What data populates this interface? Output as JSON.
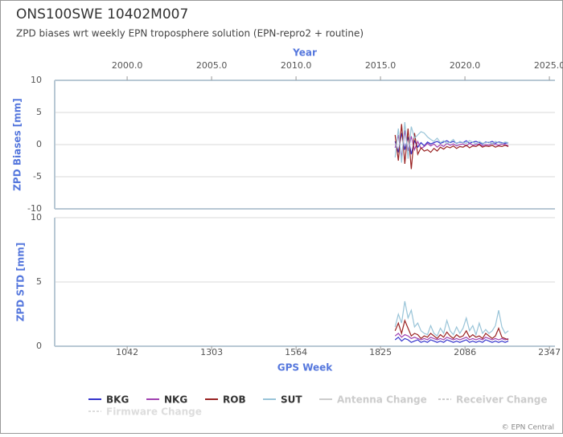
{
  "chart_data": [
    {
      "type": "line",
      "title": "ONS100SWE 10402M007",
      "subtitle": "ZPD biases wrt weekly EPN troposphere solution (EPN-repro2 + routine)",
      "x2label": "Year",
      "x2lim": [
        1995.71,
        2025.33
      ],
      "x2ticks": [
        {
          "value": 2000,
          "label": "2000.0"
        },
        {
          "value": 2005,
          "label": "2005.0"
        },
        {
          "value": 2010,
          "label": "2010.0"
        },
        {
          "value": 2015,
          "label": "2015.0"
        },
        {
          "value": 2020,
          "label": "2020.0"
        },
        {
          "value": 2025,
          "label": "2025.0"
        }
      ],
      "ylabel": "ZPD Biases [mm]",
      "ylim": [
        -10,
        10
      ],
      "yticks": [
        -10,
        -5,
        0,
        5,
        10
      ],
      "grid": true,
      "xlim": [
        818,
        2364
      ],
      "x": [
        1870,
        1880,
        1890,
        1900,
        1910,
        1920,
        1930,
        1940,
        1950,
        1960,
        1970,
        1980,
        1990,
        2000,
        2010,
        2020,
        2030,
        2040,
        2050,
        2060,
        2070,
        2080,
        2090,
        2100,
        2110,
        2120,
        2130,
        2140,
        2150,
        2160,
        2170,
        2180,
        2190,
        2200,
        2210,
        2220
      ],
      "series": [
        {
          "name": "BKG",
          "color": "#3333cc",
          "values": [
            0.5,
            -1.2,
            1.8,
            -0.8,
            1.2,
            -1.5,
            0.6,
            -0.4,
            0.3,
            -0.2,
            0.4,
            0.1,
            0.3,
            0.5,
            0.2,
            0.4,
            0.6,
            0.3,
            0.5,
            0.2,
            0.4,
            0.3,
            0.6,
            0.2,
            0.4,
            0.5,
            0.3,
            0.1,
            0.4,
            0.3,
            0.5,
            0.2,
            0.4,
            0.3,
            0.2,
            0.3
          ]
        },
        {
          "name": "NKG",
          "color": "#a040b0",
          "values": [
            -0.5,
            1.5,
            -2.0,
            2.2,
            -1.0,
            1.3,
            -0.8,
            0.5,
            -0.6,
            -0.3,
            0.2,
            -0.2,
            0.1,
            -0.4,
            0.0,
            -0.3,
            0.2,
            -0.1,
            0.1,
            -0.2,
            0.0,
            0.1,
            -0.2,
            0.2,
            -0.1,
            0.0,
            0.1,
            -0.2,
            0.0,
            -0.1,
            0.2,
            0.0,
            -0.1,
            0.1,
            0.0,
            -0.2
          ]
        },
        {
          "name": "ROB",
          "color": "#992222",
          "values": [
            1.5,
            -2.5,
            3.2,
            -3.0,
            2.5,
            -3.8,
            1.8,
            -1.5,
            -0.5,
            -1.0,
            -0.8,
            -1.2,
            -0.6,
            -1.0,
            -0.4,
            -0.7,
            -0.3,
            -0.5,
            -0.2,
            -0.6,
            -0.3,
            -0.4,
            -0.1,
            -0.5,
            -0.2,
            -0.3,
            0.0,
            -0.4,
            -0.2,
            -0.3,
            -0.1,
            -0.4,
            -0.2,
            -0.3,
            -0.1,
            -0.3
          ]
        },
        {
          "name": "SUT",
          "color": "#99c4d8",
          "values": [
            -2.0,
            2.5,
            -2.8,
            3.5,
            -2.2,
            2.8,
            1.0,
            1.5,
            2.0,
            1.8,
            1.2,
            0.8,
            0.5,
            1.0,
            0.3,
            0.6,
            0.2,
            0.4,
            0.8,
            0.1,
            0.5,
            0.3,
            0.2,
            0.6,
            0.4,
            0.1,
            0.5,
            0.2,
            0.3,
            0.4,
            0.1,
            0.5,
            0.3,
            0.2,
            0.4,
            0.3
          ]
        }
      ]
    },
    {
      "type": "line",
      "ylabel": "ZPD STD [mm]",
      "ylim": [
        0,
        10
      ],
      "yticks": [
        0,
        5,
        10
      ],
      "grid": true,
      "xlabel": "GPS Week",
      "xlim": [
        818,
        2364
      ],
      "xticks": [
        1042,
        1303,
        1564,
        1825,
        2086,
        2347
      ],
      "x": [
        1870,
        1880,
        1890,
        1900,
        1910,
        1920,
        1930,
        1940,
        1950,
        1960,
        1970,
        1980,
        1990,
        2000,
        2010,
        2020,
        2030,
        2040,
        2050,
        2060,
        2070,
        2080,
        2090,
        2100,
        2110,
        2120,
        2130,
        2140,
        2150,
        2160,
        2170,
        2180,
        2190,
        2200,
        2210,
        2220
      ],
      "series": [
        {
          "name": "BKG",
          "color": "#3333cc",
          "values": [
            0.5,
            0.7,
            0.4,
            0.6,
            0.5,
            0.3,
            0.4,
            0.5,
            0.3,
            0.4,
            0.3,
            0.5,
            0.4,
            0.3,
            0.4,
            0.3,
            0.5,
            0.4,
            0.3,
            0.4,
            0.3,
            0.4,
            0.5,
            0.3,
            0.4,
            0.3,
            0.4,
            0.3,
            0.5,
            0.4,
            0.3,
            0.4,
            0.3,
            0.4,
            0.3,
            0.4
          ]
        },
        {
          "name": "NKG",
          "color": "#a040b0",
          "values": [
            0.8,
            1.0,
            0.7,
            0.9,
            0.8,
            0.6,
            0.7,
            0.6,
            0.5,
            0.6,
            0.5,
            0.7,
            0.6,
            0.5,
            0.6,
            0.5,
            0.7,
            0.6,
            0.5,
            0.6,
            0.5,
            0.6,
            0.7,
            0.5,
            0.6,
            0.5,
            0.6,
            0.5,
            0.7,
            0.6,
            0.5,
            0.6,
            0.5,
            0.6,
            0.5,
            0.6
          ]
        },
        {
          "name": "ROB",
          "color": "#992222",
          "values": [
            1.2,
            1.8,
            1.0,
            2.0,
            1.4,
            0.8,
            1.0,
            0.9,
            0.6,
            0.8,
            0.7,
            1.0,
            0.8,
            0.6,
            0.9,
            0.7,
            1.1,
            0.8,
            0.6,
            0.9,
            0.7,
            0.8,
            1.2,
            0.7,
            0.9,
            0.7,
            0.8,
            0.6,
            1.0,
            0.8,
            0.6,
            0.8,
            1.4,
            0.7,
            0.6,
            0.5
          ]
        },
        {
          "name": "SUT",
          "color": "#99c4d8",
          "values": [
            1.5,
            2.5,
            1.8,
            3.5,
            2.2,
            2.8,
            1.5,
            1.8,
            1.2,
            1.0,
            0.9,
            1.6,
            1.0,
            0.8,
            1.4,
            1.0,
            2.0,
            1.2,
            0.9,
            1.5,
            1.0,
            1.4,
            2.2,
            1.2,
            1.6,
            0.9,
            1.8,
            1.0,
            1.3,
            1.0,
            1.2,
            1.6,
            2.8,
            1.5,
            1.0,
            1.2
          ]
        }
      ]
    }
  ],
  "change_markers": [
    {
      "name": "Antenna Change",
      "color": "#cccccc"
    },
    {
      "name": "Receiver Change",
      "color": "#cccccc"
    },
    {
      "name": "Firmware Change",
      "color": "#dddddd"
    }
  ],
  "footer": "© EPN Central"
}
